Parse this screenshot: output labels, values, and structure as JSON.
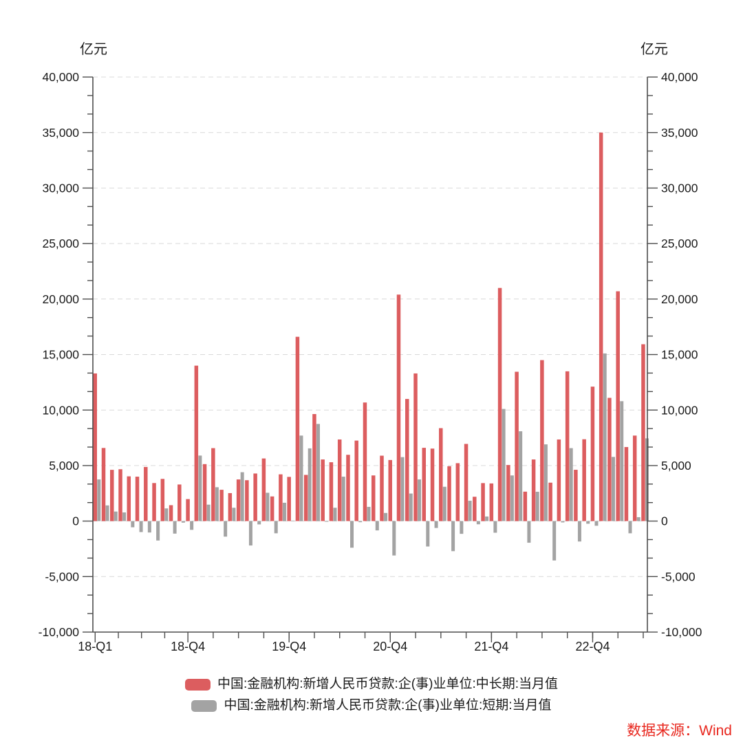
{
  "chart": {
    "left_unit": "亿元",
    "right_unit": "亿元",
    "source": "数据来源：Wind"
  },
  "legend": [
    {
      "label": "中国:金融机构:新增人民币贷款:企(事)业单位:中长期:当月值",
      "color": "#dc5d5f"
    },
    {
      "label": "中国:金融机构:新增人民币贷款:企(事)业单位:短期:当月值",
      "color": "#a3a3a3"
    }
  ],
  "chart_data": {
    "type": "bar",
    "title": "",
    "xlabel": "",
    "ylabel_left": "亿元",
    "ylabel_right": "亿元",
    "ylim": [
      -10000,
      40000
    ],
    "ytick_step": 5000,
    "yticks": [
      "-10,000",
      "-5,000",
      "0",
      "5,000",
      "10,000",
      "15,000",
      "20,000",
      "25,000",
      "30,000",
      "35,000",
      "40,000"
    ],
    "grid": "horizontal-dashed",
    "legend_position": "bottom",
    "x": [
      "2018-01",
      "2018-02",
      "2018-03",
      "2018-04",
      "2018-05",
      "2018-06",
      "2018-07",
      "2018-08",
      "2018-09",
      "2018-10",
      "2018-11",
      "2018-12",
      "2019-01",
      "2019-02",
      "2019-03",
      "2019-04",
      "2019-05",
      "2019-06",
      "2019-07",
      "2019-08",
      "2019-09",
      "2019-10",
      "2019-11",
      "2019-12",
      "2020-01",
      "2020-02",
      "2020-03",
      "2020-04",
      "2020-05",
      "2020-06",
      "2020-07",
      "2020-08",
      "2020-09",
      "2020-10",
      "2020-11",
      "2020-12",
      "2021-01",
      "2021-02",
      "2021-03",
      "2021-04",
      "2021-05",
      "2021-06",
      "2021-07",
      "2021-08",
      "2021-09",
      "2021-10",
      "2021-11",
      "2021-12",
      "2022-01",
      "2022-02",
      "2022-03",
      "2022-04",
      "2022-05",
      "2022-06",
      "2022-07",
      "2022-08",
      "2022-09",
      "2022-10",
      "2022-11",
      "2022-12",
      "2023-01",
      "2023-02",
      "2023-03",
      "2023-04",
      "2023-05",
      "2023-06"
    ],
    "xtick_labels": [
      {
        "month_index": 0,
        "label": "18-Q1"
      },
      {
        "month_index": 11,
        "label": "18-Q4"
      },
      {
        "month_index": 23,
        "label": "19-Q4"
      },
      {
        "month_index": 35,
        "label": "20-Q4"
      },
      {
        "month_index": 47,
        "label": "21-Q4"
      },
      {
        "month_index": 59,
        "label": "22-Q4"
      }
    ],
    "series": [
      {
        "name": "中国:金融机构:新增人民币贷款:企(事)业单位:中长期:当月值",
        "color": "#dc5d5f",
        "values": [
          13300,
          6585,
          4615,
          4670,
          4030,
          4000,
          4875,
          3425,
          3800,
          1430,
          3295,
          1980,
          14000,
          5130,
          6570,
          2820,
          2520,
          3750,
          3680,
          4285,
          5640,
          2220,
          4210,
          3980,
          16600,
          4160,
          9640,
          5550,
          5300,
          7350,
          5970,
          7250,
          10680,
          4110,
          5890,
          5500,
          20400,
          11000,
          13300,
          6600,
          6530,
          8370,
          4940,
          5215,
          6950,
          2190,
          3420,
          3390,
          21000,
          5050,
          13450,
          2650,
          5550,
          14500,
          3460,
          7350,
          13490,
          4620,
          7370,
          12110,
          35000,
          11100,
          20700,
          6670,
          7700,
          15930
        ]
      },
      {
        "name": "中国:金融机构:新增人民币贷款:企(事)业单位:短期:当月值",
        "color": "#a3a3a3",
        "values": [
          3750,
          1410,
          860,
          780,
          -560,
          -990,
          -1030,
          -1750,
          1140,
          -1130,
          -140,
          -790,
          5900,
          1480,
          3050,
          -1400,
          1200,
          4400,
          -2200,
          -300,
          2550,
          -1100,
          1650,
          40,
          7700,
          6550,
          8750,
          -60,
          1200,
          4000,
          -2400,
          -100,
          1280,
          -840,
          730,
          -3100,
          5760,
          2480,
          3750,
          -2290,
          -620,
          3090,
          -2710,
          -1150,
          1830,
          -290,
          410,
          -1050,
          10100,
          4110,
          8090,
          -1950,
          2640,
          6910,
          -3550,
          -120,
          6570,
          -1840,
          -240,
          -420,
          15100,
          5780,
          10800,
          -1100,
          350,
          7450
        ]
      }
    ]
  }
}
